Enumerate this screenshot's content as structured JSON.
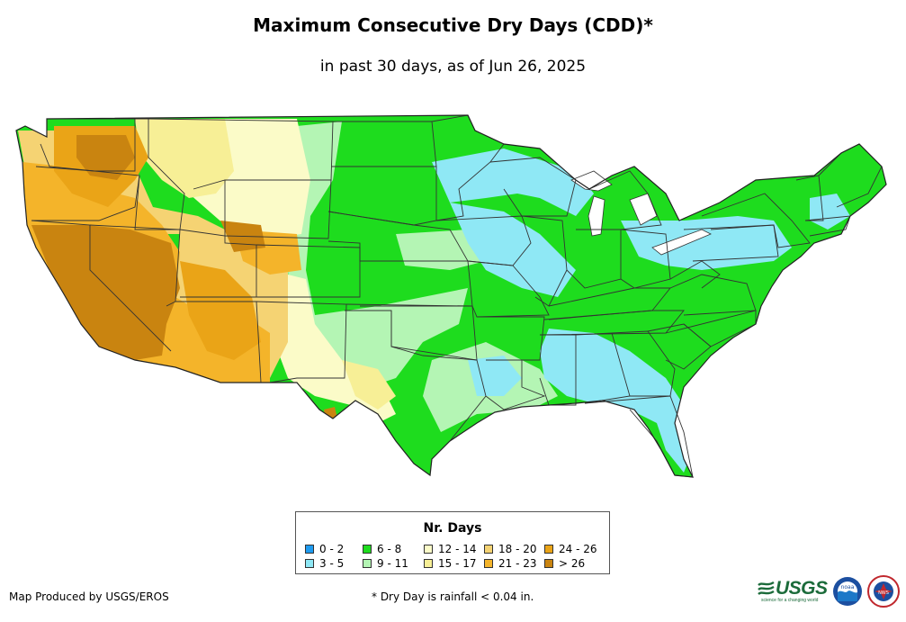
{
  "header": {
    "title": "Maximum Consecutive Dry Days (CDD)*",
    "subtitle": "in past 30 days, as of Jun 26, 2025"
  },
  "legend": {
    "title": "Nr. Days",
    "items": [
      {
        "label": "0 - 2",
        "color": "#1e9bf0"
      },
      {
        "label": "3 - 5",
        "color": "#8fe8f5"
      },
      {
        "label": "6 - 8",
        "color": "#1edc1e"
      },
      {
        "label": "9 - 11",
        "color": "#b4f5b4"
      },
      {
        "label": "12 - 14",
        "color": "#fbfbc8"
      },
      {
        "label": "15 - 17",
        "color": "#f7ef96"
      },
      {
        "label": "18 - 20",
        "color": "#f5d373"
      },
      {
        "label": "21 - 23",
        "color": "#f4b42a"
      },
      {
        "label": "24 - 26",
        "color": "#eaa417"
      },
      {
        "label": "> 26",
        "color": "#c98410"
      }
    ]
  },
  "footer": {
    "producer": "Map Produced by USGS/EROS",
    "footnote": "* Dry Day is rainfall < 0.04 in.",
    "usgs_logo_text": "USGS",
    "usgs_tagline": "science for a changing world",
    "noaa_logo_text": "noaa",
    "nws_logo_text": "NWS"
  },
  "colors": {
    "state_border": "#333333",
    "background": "#ffffff"
  }
}
